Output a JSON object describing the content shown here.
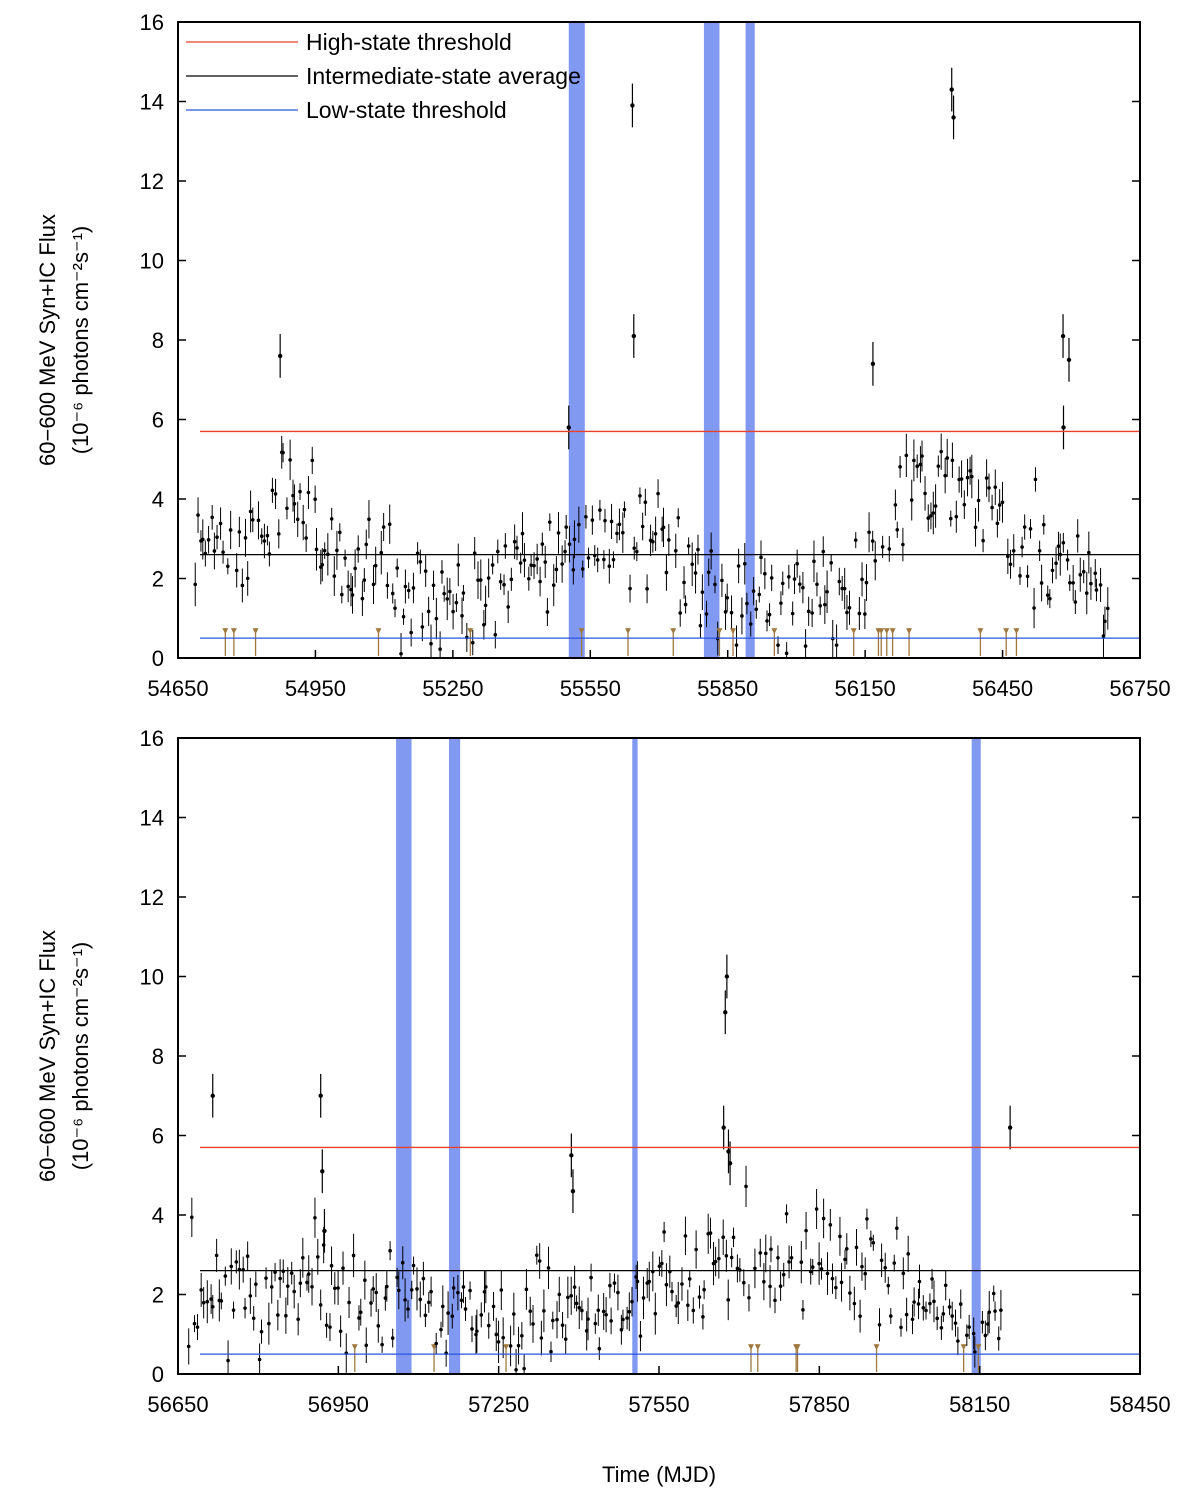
{
  "chart_data": [
    {
      "type": "scatter",
      "panel": "top",
      "xlim": [
        54650,
        56750
      ],
      "ylim": [
        0,
        16
      ],
      "x_ticks": [
        54650,
        54950,
        55250,
        55550,
        55850,
        56150,
        56450,
        56750
      ],
      "y_ticks": [
        0,
        2,
        4,
        6,
        8,
        10,
        12,
        14,
        16
      ],
      "xlabel": "",
      "ylabel_line1": "60−600 MeV Syn+IC Flux",
      "ylabel_line2": "(10⁻⁶ photons cm⁻²s⁻¹)",
      "thresholds": [
        {
          "name": "High-state threshold",
          "value": 5.7,
          "color": "#e8402a"
        },
        {
          "name": "Intermediate-state average",
          "value": 2.6,
          "color": "#000000"
        },
        {
          "name": "Low-state threshold",
          "value": 0.5,
          "color": "#2a56e0"
        }
      ],
      "legend": [
        "High-state threshold",
        "Intermediate-state average",
        "Low-state threshold"
      ],
      "legend_position": "top-left",
      "shaded_intervals": [
        [
          55503,
          55538
        ],
        [
          55798,
          55832
        ],
        [
          55889,
          55909
        ]
      ],
      "notable_points": [
        {
          "x": 54873,
          "y": 7.6
        },
        {
          "x": 55503,
          "y": 5.8
        },
        {
          "x": 55642,
          "y": 13.9
        },
        {
          "x": 55645,
          "y": 8.1
        },
        {
          "x": 56167,
          "y": 7.4
        },
        {
          "x": 56339,
          "y": 14.3
        },
        {
          "x": 56343,
          "y": 13.6
        },
        {
          "x": 56582,
          "y": 8.1
        },
        {
          "x": 56595,
          "y": 7.5
        },
        {
          "x": 56583,
          "y": 5.8
        }
      ],
      "data_start": 54685,
      "data_end": 56685
    },
    {
      "type": "scatter",
      "panel": "bottom",
      "xlim": [
        56650,
        58450
      ],
      "ylim": [
        0,
        16
      ],
      "x_ticks": [
        56650,
        56950,
        57250,
        57550,
        57850,
        58150,
        58450
      ],
      "y_ticks": [
        0,
        2,
        4,
        6,
        8,
        10,
        12,
        14,
        16
      ],
      "xlabel": "Time (MJD)",
      "ylabel_line1": "60−600 MeV Syn+IC Flux",
      "ylabel_line2": "(10⁻⁶ photons cm⁻²s⁻¹)",
      "thresholds": [
        {
          "name": "High-state threshold",
          "value": 5.7,
          "color": "#e8402a"
        },
        {
          "name": "Intermediate-state average",
          "value": 2.6,
          "color": "#000000"
        },
        {
          "name": "Low-state threshold",
          "value": 0.5,
          "color": "#2a56e0"
        }
      ],
      "shaded_intervals": [
        [
          57058,
          57087
        ],
        [
          57157,
          57178
        ],
        [
          57500,
          57510
        ],
        [
          58135,
          58152
        ]
      ],
      "notable_points": [
        {
          "x": 56715,
          "y": 7.0
        },
        {
          "x": 56917,
          "y": 7.0
        },
        {
          "x": 56920,
          "y": 5.1
        },
        {
          "x": 56924,
          "y": 3.6
        },
        {
          "x": 57386,
          "y": 5.5
        },
        {
          "x": 57389,
          "y": 4.6
        },
        {
          "x": 57671,
          "y": 6.2
        },
        {
          "x": 57674,
          "y": 9.1
        },
        {
          "x": 57677,
          "y": 10.0
        },
        {
          "x": 57680,
          "y": 5.6
        },
        {
          "x": 57683,
          "y": 5.3
        },
        {
          "x": 58207,
          "y": 6.2
        }
      ],
      "data_start": 56670,
      "data_end": 58195
    }
  ]
}
